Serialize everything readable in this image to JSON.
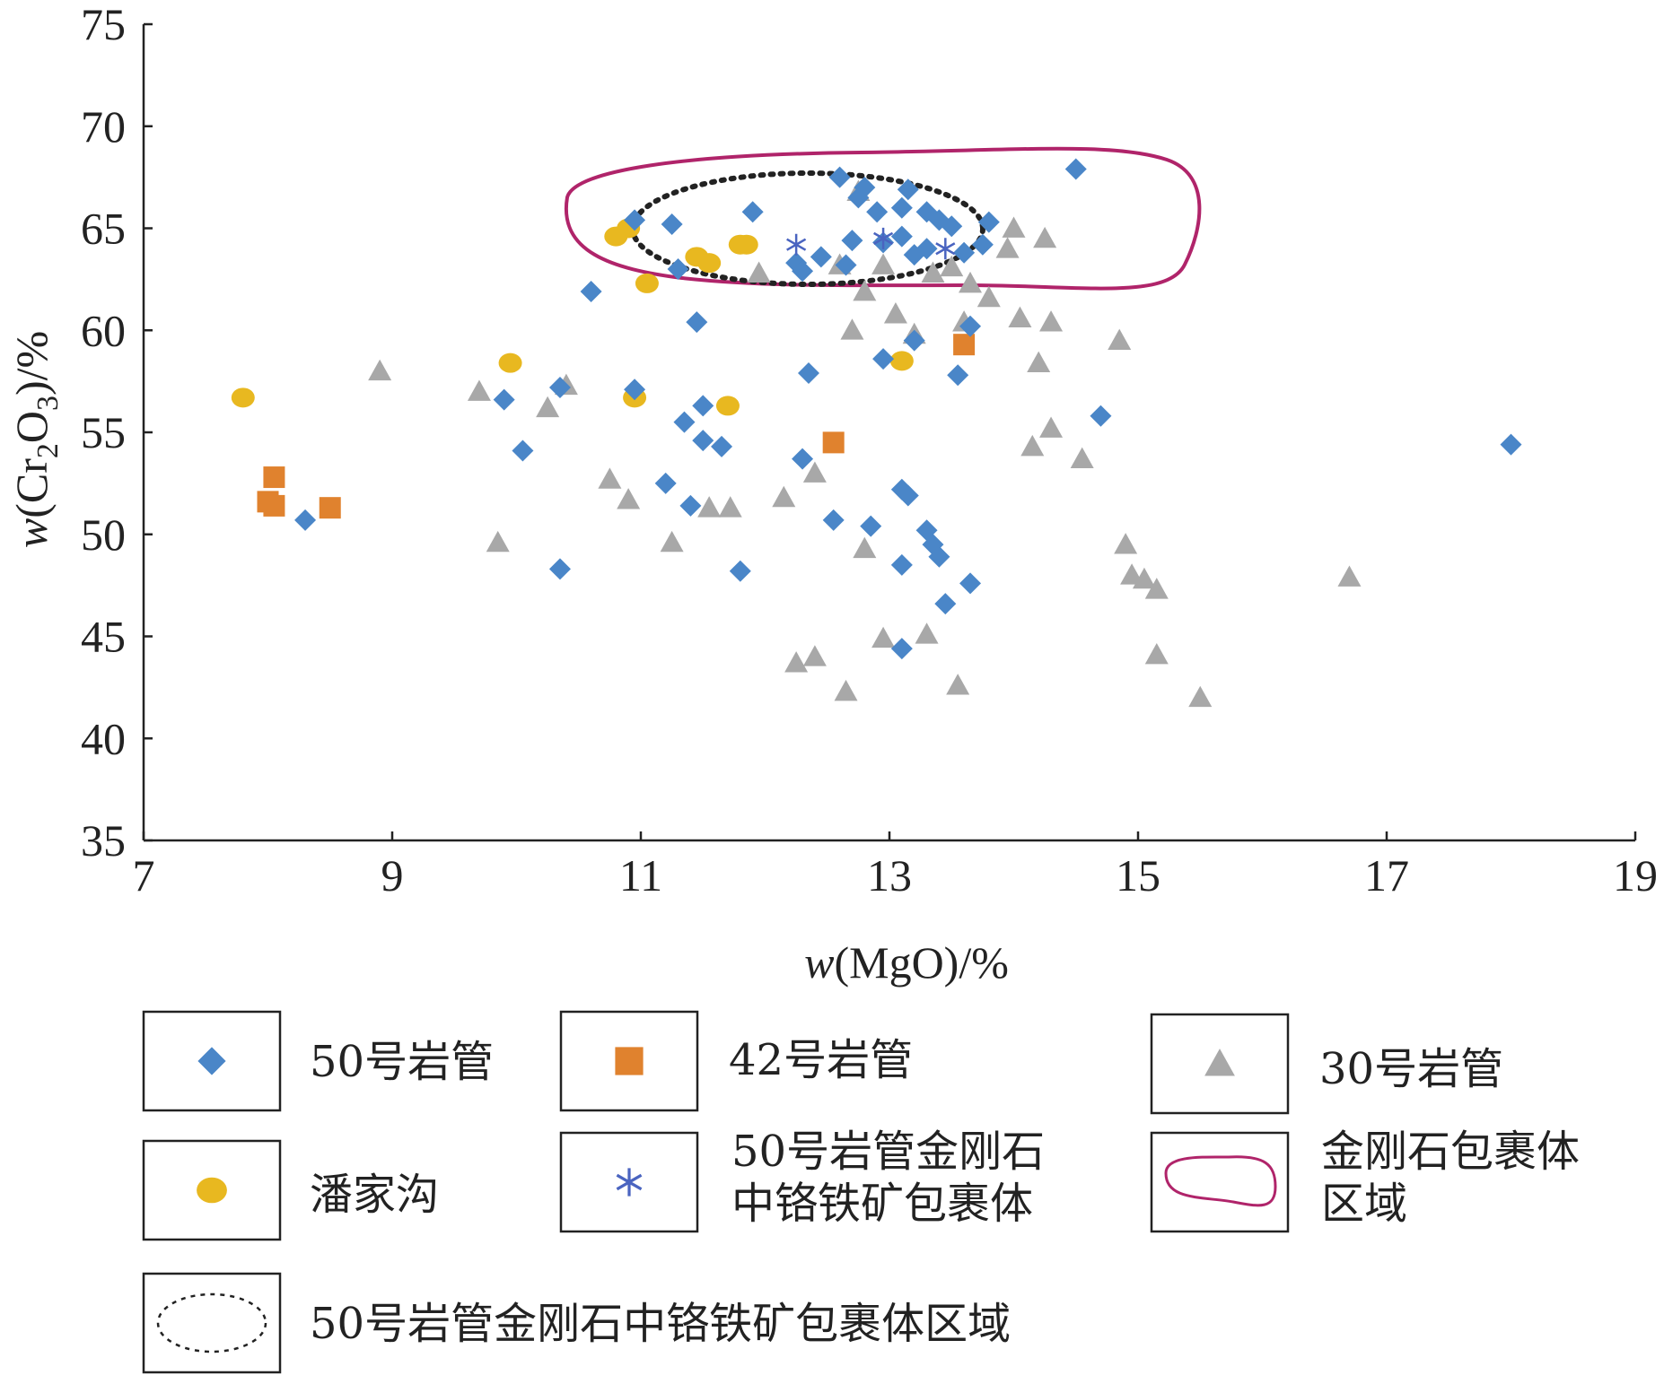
{
  "chart_data": {
    "type": "scatter",
    "xlabel_italic": "w",
    "xlabel_rest": "(MgO)/%",
    "ylabel_italic": "w",
    "ylabel_rest_a": "(Cr",
    "ylabel_sub1": "2",
    "ylabel_rest_b": "O",
    "ylabel_sub2": "3",
    "ylabel_rest_c": ")/%",
    "xlim": [
      7,
      19
    ],
    "ylim": [
      35,
      75
    ],
    "xticks": [
      "7",
      "9",
      "11",
      "13",
      "15",
      "17",
      "19"
    ],
    "yticks": [
      "35",
      "40",
      "45",
      "50",
      "55",
      "60",
      "65",
      "70",
      "75"
    ],
    "grid": false,
    "legend_position": "bottom",
    "series": [
      {
        "name": "50号岩管",
        "marker": "diamond",
        "color": "#4a86c8",
        "points": [
          [
            8.3,
            50.7
          ],
          [
            9.9,
            56.6
          ],
          [
            10.05,
            54.1
          ],
          [
            10.35,
            48.3
          ],
          [
            10.35,
            57.2
          ],
          [
            10.6,
            61.9
          ],
          [
            10.95,
            57.1
          ],
          [
            10.95,
            65.4
          ],
          [
            11.2,
            52.5
          ],
          [
            11.25,
            65.2
          ],
          [
            11.3,
            63.0
          ],
          [
            11.35,
            55.5
          ],
          [
            11.4,
            51.4
          ],
          [
            11.45,
            60.4
          ],
          [
            11.5,
            56.3
          ],
          [
            11.5,
            54.6
          ],
          [
            11.65,
            54.3
          ],
          [
            11.8,
            48.2
          ],
          [
            11.9,
            65.8
          ],
          [
            12.25,
            63.3
          ],
          [
            12.3,
            53.7
          ],
          [
            12.3,
            62.9
          ],
          [
            12.35,
            57.9
          ],
          [
            12.45,
            63.6
          ],
          [
            12.55,
            50.7
          ],
          [
            12.6,
            67.5
          ],
          [
            12.65,
            63.2
          ],
          [
            12.7,
            64.4
          ],
          [
            12.75,
            66.5
          ],
          [
            12.8,
            67.0
          ],
          [
            12.85,
            50.4
          ],
          [
            12.9,
            65.8
          ],
          [
            12.95,
            64.3
          ],
          [
            12.95,
            58.6
          ],
          [
            13.1,
            52.2
          ],
          [
            13.1,
            48.5
          ],
          [
            13.1,
            44.4
          ],
          [
            13.15,
            51.9
          ],
          [
            13.1,
            66.0
          ],
          [
            13.15,
            66.9
          ],
          [
            13.2,
            63.7
          ],
          [
            13.1,
            64.6
          ],
          [
            13.2,
            59.5
          ],
          [
            13.3,
            50.2
          ],
          [
            13.3,
            64.0
          ],
          [
            13.3,
            65.8
          ],
          [
            13.35,
            49.5
          ],
          [
            13.4,
            48.9
          ],
          [
            13.4,
            65.4
          ],
          [
            13.45,
            46.6
          ],
          [
            13.5,
            65.1
          ],
          [
            13.55,
            57.8
          ],
          [
            13.6,
            63.8
          ],
          [
            13.65,
            47.6
          ],
          [
            13.65,
            60.2
          ],
          [
            13.75,
            64.2
          ],
          [
            13.8,
            65.3
          ],
          [
            14.5,
            67.9
          ],
          [
            14.7,
            55.8
          ],
          [
            18.0,
            54.4
          ]
        ]
      },
      {
        "name": "42号岩管",
        "marker": "square",
        "color": "#e0822e",
        "points": [
          [
            8.0,
            51.6
          ],
          [
            8.05,
            52.8
          ],
          [
            8.05,
            51.4
          ],
          [
            8.5,
            51.3
          ],
          [
            12.55,
            54.5
          ],
          [
            13.6,
            59.3
          ]
        ]
      },
      {
        "name": "30号岩管",
        "marker": "triangle",
        "color": "#a8a8a8",
        "points": [
          [
            8.9,
            58.0
          ],
          [
            9.7,
            57.0
          ],
          [
            9.85,
            49.6
          ],
          [
            10.25,
            56.2
          ],
          [
            10.4,
            57.3
          ],
          [
            10.75,
            52.7
          ],
          [
            10.9,
            51.7
          ],
          [
            11.25,
            49.6
          ],
          [
            11.55,
            51.3
          ],
          [
            11.72,
            51.3
          ],
          [
            11.95,
            62.8
          ],
          [
            12.15,
            51.8
          ],
          [
            12.25,
            43.7
          ],
          [
            12.4,
            44.0
          ],
          [
            12.4,
            53.0
          ],
          [
            12.6,
            63.2
          ],
          [
            12.65,
            42.3
          ],
          [
            12.7,
            60.0
          ],
          [
            12.75,
            66.8
          ],
          [
            12.8,
            49.3
          ],
          [
            12.8,
            61.9
          ],
          [
            12.95,
            63.2
          ],
          [
            12.95,
            44.9
          ],
          [
            13.05,
            60.8
          ],
          [
            13.2,
            59.8
          ],
          [
            13.3,
            45.1
          ],
          [
            13.35,
            62.8
          ],
          [
            13.5,
            63.1
          ],
          [
            13.55,
            42.6
          ],
          [
            13.6,
            60.4
          ],
          [
            13.65,
            62.3
          ],
          [
            13.8,
            61.6
          ],
          [
            13.95,
            64.0
          ],
          [
            14.0,
            65.0
          ],
          [
            14.05,
            60.6
          ],
          [
            14.15,
            54.3
          ],
          [
            14.2,
            58.4
          ],
          [
            14.25,
            64.5
          ],
          [
            14.3,
            55.2
          ],
          [
            14.3,
            60.4
          ],
          [
            14.55,
            53.7
          ],
          [
            14.85,
            59.5
          ],
          [
            14.9,
            49.5
          ],
          [
            14.95,
            48.0
          ],
          [
            15.05,
            47.8
          ],
          [
            15.15,
            47.3
          ],
          [
            15.15,
            44.1
          ],
          [
            15.5,
            42.0
          ],
          [
            16.7,
            47.9
          ]
        ]
      },
      {
        "name": "潘家沟",
        "marker": "circle",
        "color": "#e8b820",
        "points": [
          [
            7.8,
            56.7
          ],
          [
            9.95,
            58.4
          ],
          [
            10.8,
            64.6
          ],
          [
            10.9,
            65.0
          ],
          [
            10.95,
            56.7
          ],
          [
            11.05,
            62.3
          ],
          [
            11.45,
            63.6
          ],
          [
            11.55,
            63.3
          ],
          [
            11.7,
            56.3
          ],
          [
            11.8,
            64.2
          ],
          [
            11.85,
            64.2
          ],
          [
            13.1,
            58.5
          ]
        ]
      },
      {
        "name": "50号岩管金刚石中铬铁矿包裹体",
        "marker": "asterisk",
        "color": "#4a64c0",
        "points": [
          [
            12.25,
            64.2
          ],
          [
            12.95,
            64.5
          ],
          [
            13.45,
            64.0
          ]
        ]
      }
    ],
    "regions": [
      {
        "name": "金刚石包裹体区域",
        "style": "solid",
        "color": "#b0246a"
      },
      {
        "name": "50号岩管金刚石中铬铁矿包裹体区域",
        "style": "dotted",
        "color": "#222222"
      }
    ]
  },
  "legend": {
    "items": [
      {
        "lines": [
          "50号岩管"
        ],
        "marker": "diamond",
        "color": "#4a86c8"
      },
      {
        "lines": [
          "42号岩管"
        ],
        "marker": "square",
        "color": "#e0822e"
      },
      {
        "lines": [
          "30号岩管"
        ],
        "marker": "triangle",
        "color": "#a8a8a8"
      },
      {
        "lines": [
          "潘家沟"
        ],
        "marker": "circle",
        "color": "#e8b820"
      },
      {
        "lines": [
          "50号岩管金刚石",
          "中铬铁矿包裹体"
        ],
        "marker": "asterisk",
        "color": "#4a64c0"
      },
      {
        "lines": [
          "金刚石包裹体",
          "区域"
        ],
        "marker": "solid-blob",
        "color": "#b0246a"
      },
      {
        "lines": [
          "50号岩管金刚石中铬铁矿包裹体区域"
        ],
        "marker": "dotted-ellipse",
        "color": "#222222"
      }
    ]
  }
}
